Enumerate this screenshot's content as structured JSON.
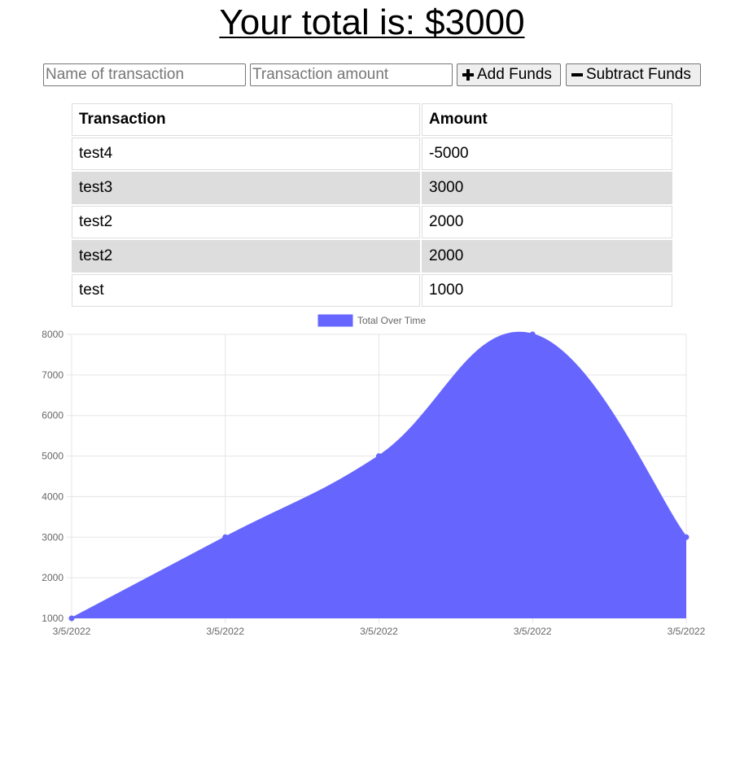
{
  "header": {
    "total_text": "Your total is: $3000"
  },
  "form": {
    "name_placeholder": "Name of transaction",
    "amount_placeholder": "Transaction amount",
    "add_label": "Add Funds",
    "subtract_label": "Subtract Funds"
  },
  "table": {
    "headers": [
      "Transaction",
      "Amount"
    ],
    "rows": [
      {
        "name": "test4",
        "amount": "-5000"
      },
      {
        "name": "test3",
        "amount": "3000"
      },
      {
        "name": "test2",
        "amount": "2000"
      },
      {
        "name": "test2",
        "amount": "2000"
      },
      {
        "name": "test",
        "amount": "1000"
      }
    ]
  },
  "chart_data": {
    "type": "area",
    "categories": [
      "3/5/2022",
      "3/5/2022",
      "3/5/2022",
      "3/5/2022",
      "3/5/2022"
    ],
    "series": [
      {
        "name": "Total Over Time",
        "values": [
          1000,
          3000,
          5000,
          8000,
          3000
        ]
      }
    ],
    "ylim": [
      1000,
      8000
    ],
    "yticks": [
      1000,
      2000,
      3000,
      4000,
      5000,
      6000,
      7000,
      8000
    ],
    "grid": true,
    "legend": "top",
    "colors": {
      "fill": "#6666ff",
      "line": "#6666ff"
    }
  }
}
